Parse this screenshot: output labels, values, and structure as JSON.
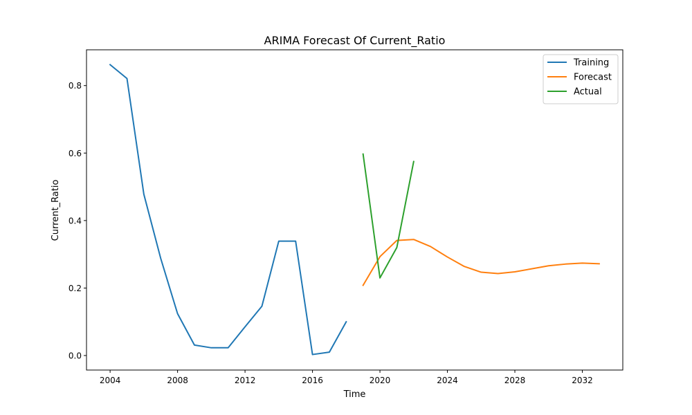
{
  "chart_data": {
    "type": "line",
    "title": "ARIMA Forecast Of Current_Ratio",
    "xlabel": "Time",
    "ylabel": "Current_Ratio",
    "xlim": [
      2002.6,
      2034.4
    ],
    "ylim": [
      -0.043,
      0.906
    ],
    "xticks": [
      2004,
      2008,
      2012,
      2016,
      2020,
      2024,
      2028,
      2032
    ],
    "yticks": [
      0.0,
      0.2,
      0.4,
      0.6,
      0.8
    ],
    "grid": false,
    "legend_position": "top-right",
    "series": [
      {
        "name": "Training",
        "color": "#1f77b4",
        "x": [
          2004,
          2005,
          2006,
          2007,
          2008,
          2009,
          2010,
          2011,
          2012,
          2013,
          2014,
          2015,
          2016,
          2017,
          2018
        ],
        "y": [
          0.862,
          0.821,
          0.478,
          0.288,
          0.124,
          0.031,
          0.023,
          0.023,
          0.085,
          0.146,
          0.339,
          0.339,
          0.003,
          0.01,
          0.1
        ]
      },
      {
        "name": "Forecast",
        "color": "#ff7f0e",
        "x": [
          2019,
          2020,
          2021,
          2022,
          2023,
          2024,
          2025,
          2026,
          2027,
          2028,
          2029,
          2030,
          2031,
          2032,
          2033
        ],
        "y": [
          0.208,
          0.293,
          0.341,
          0.344,
          0.323,
          0.292,
          0.264,
          0.247,
          0.243,
          0.248,
          0.257,
          0.266,
          0.271,
          0.274,
          0.272
        ]
      },
      {
        "name": "Actual",
        "color": "#2ca02c",
        "x": [
          2019,
          2020,
          2021,
          2022
        ],
        "y": [
          0.597,
          0.23,
          0.32,
          0.575
        ]
      }
    ]
  }
}
